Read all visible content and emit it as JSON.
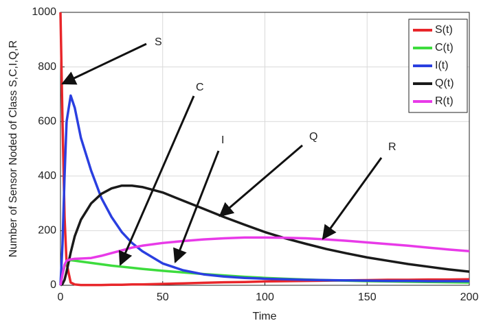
{
  "chart_data": {
    "type": "line",
    "x_label": "Time",
    "y_label": "Number of Sensor Noded of Class S,C,I,Q,R",
    "x": [
      0,
      1,
      2,
      3,
      5,
      7,
      10,
      15,
      20,
      25,
      30,
      35,
      40,
      50,
      60,
      70,
      80,
      90,
      100,
      110,
      120,
      130,
      140,
      150,
      160,
      170,
      180,
      190,
      200
    ],
    "series": [
      {
        "name": "S(t)",
        "color": "#e8262a",
        "values": [
          1000,
          600,
          250,
          80,
          10,
          3,
          1,
          1,
          1,
          2,
          2,
          3,
          3,
          5,
          7,
          9,
          11,
          12,
          14,
          15,
          16,
          17,
          18,
          19,
          20,
          20,
          21,
          21,
          22
        ]
      },
      {
        "name": "C(t)",
        "color": "#3ddc3d",
        "values": [
          0,
          40,
          70,
          85,
          92,
          90,
          87,
          82,
          77,
          72,
          68,
          64,
          60,
          53,
          47,
          41,
          36,
          31,
          27,
          24,
          21,
          19,
          17,
          15,
          14,
          13,
          12,
          11,
          10
        ]
      },
      {
        "name": "I(t)",
        "color": "#2a3fe0",
        "values": [
          0,
          150,
          400,
          600,
          695,
          650,
          540,
          420,
          320,
          250,
          195,
          155,
          125,
          80,
          55,
          40,
          32,
          27,
          24,
          22,
          20,
          19,
          18,
          17,
          16,
          16,
          15,
          15,
          15
        ]
      },
      {
        "name": "Q(t)",
        "color": "#1a1a1a",
        "values": [
          0,
          5,
          20,
          50,
          120,
          180,
          240,
          300,
          335,
          355,
          365,
          365,
          360,
          340,
          310,
          280,
          250,
          222,
          195,
          172,
          152,
          133,
          117,
          102,
          90,
          78,
          68,
          58,
          50
        ]
      },
      {
        "name": "R(t)",
        "color": "#e83ae8",
        "values": [
          0,
          40,
          75,
          90,
          95,
          97,
          98,
          100,
          108,
          118,
          128,
          138,
          145,
          155,
          162,
          168,
          172,
          175,
          175,
          174,
          172,
          168,
          163,
          157,
          151,
          145,
          138,
          131,
          125
        ]
      }
    ],
    "annotations": [
      "S",
      "C",
      "I",
      "Q",
      "R"
    ],
    "xlim": [
      0,
      200
    ],
    "xticks": [
      0,
      50,
      100,
      150,
      200
    ],
    "ylim": [
      0,
      1000
    ],
    "yticks": [
      0,
      200,
      400,
      600,
      800,
      1000
    ],
    "grid": true,
    "legend": "top-right"
  }
}
